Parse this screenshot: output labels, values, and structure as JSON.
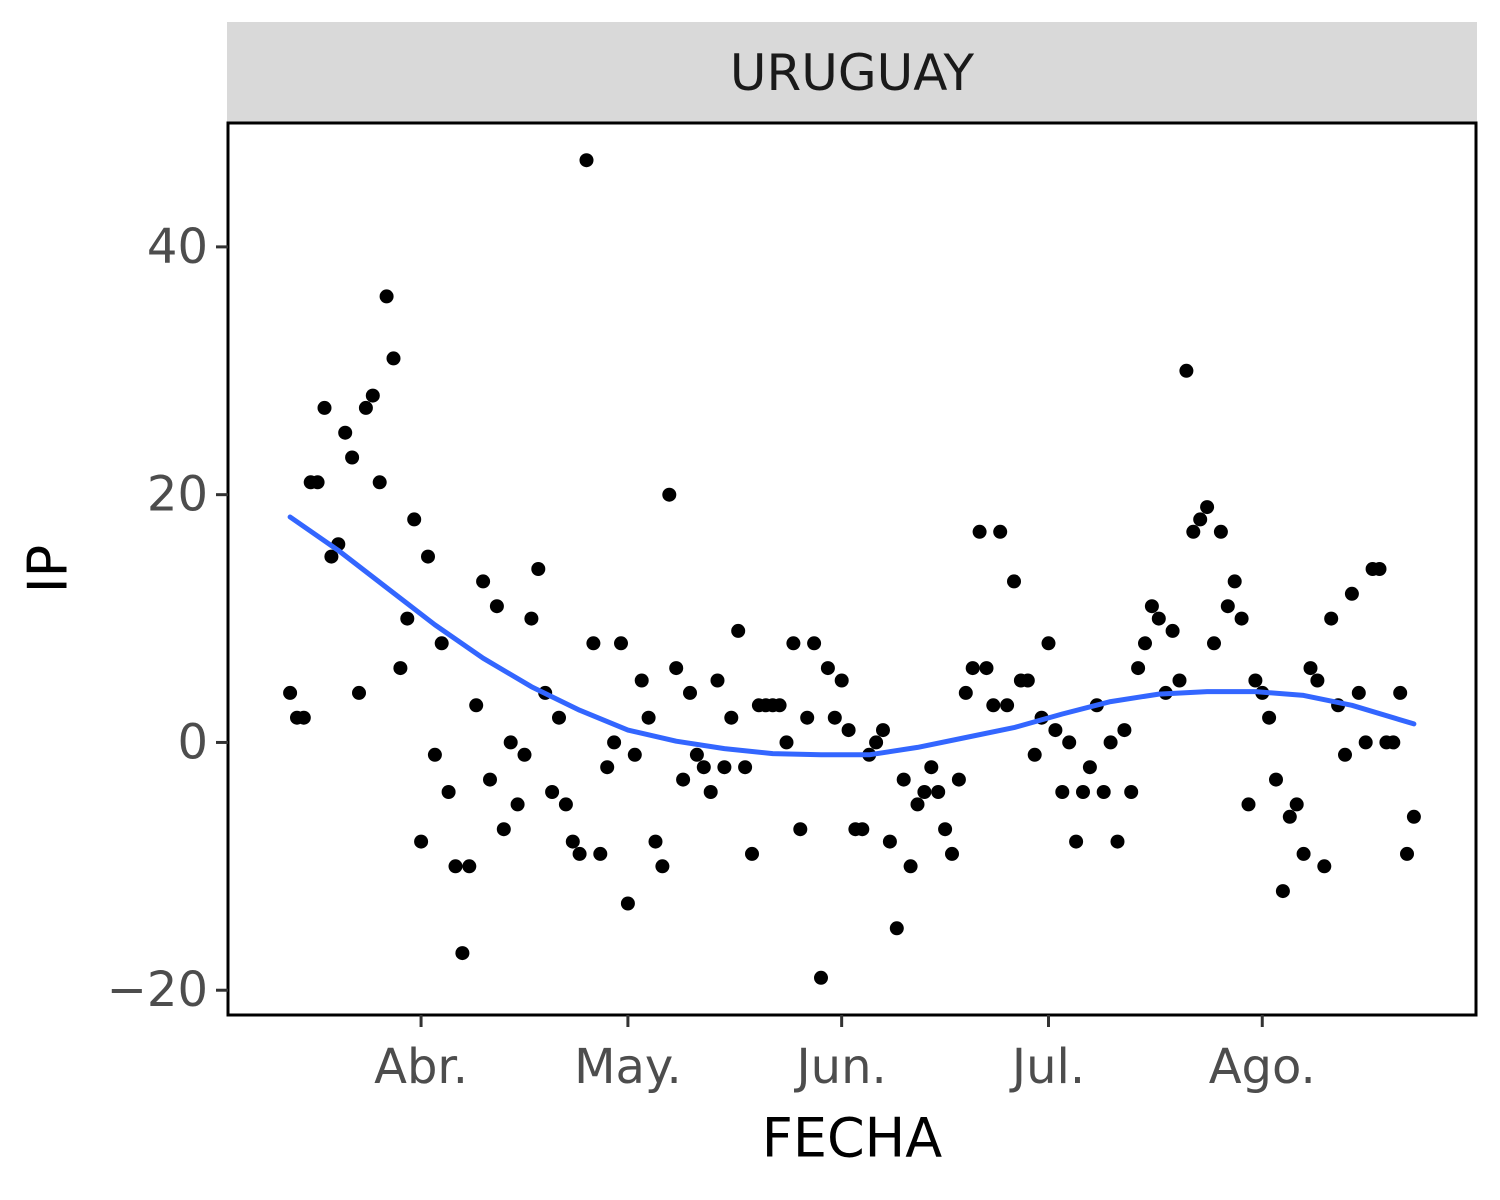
{
  "chart_data": {
    "type": "scatter",
    "facet_label": "URUGUAY",
    "xlabel": "FECHA",
    "ylabel": "IP",
    "x_ticks": [
      {
        "date": "2021-04-01",
        "label": "Abr."
      },
      {
        "date": "2021-05-01",
        "label": "May."
      },
      {
        "date": "2021-06-01",
        "label": "Jun."
      },
      {
        "date": "2021-07-01",
        "label": "Jul."
      },
      {
        "date": "2021-08-01",
        "label": "Ago."
      }
    ],
    "y_ticks": [
      -20,
      0,
      20,
      40
    ],
    "xlim": [
      "2021-03-04",
      "2021-09-01"
    ],
    "ylim": [
      -22,
      50
    ],
    "grid": false,
    "colors": {
      "points": "#000000",
      "trend": "#3366FF",
      "strip_bg": "#D9D9D9",
      "panel_border": "#000000"
    },
    "series": [
      {
        "type": "scatter",
        "points": [
          {
            "x": "2021-03-13",
            "y": 4
          },
          {
            "x": "2021-03-14",
            "y": 2
          },
          {
            "x": "2021-03-15",
            "y": 2
          },
          {
            "x": "2021-03-16",
            "y": 21
          },
          {
            "x": "2021-03-17",
            "y": 21
          },
          {
            "x": "2021-03-18",
            "y": 27
          },
          {
            "x": "2021-03-19",
            "y": 15
          },
          {
            "x": "2021-03-20",
            "y": 16
          },
          {
            "x": "2021-03-21",
            "y": 25
          },
          {
            "x": "2021-03-22",
            "y": 23
          },
          {
            "x": "2021-03-23",
            "y": 4
          },
          {
            "x": "2021-03-24",
            "y": 27
          },
          {
            "x": "2021-03-25",
            "y": 28
          },
          {
            "x": "2021-03-26",
            "y": 21
          },
          {
            "x": "2021-03-27",
            "y": 36
          },
          {
            "x": "2021-03-28",
            "y": 31
          },
          {
            "x": "2021-03-29",
            "y": 6
          },
          {
            "x": "2021-03-30",
            "y": 10
          },
          {
            "x": "2021-03-31",
            "y": 18
          },
          {
            "x": "2021-04-01",
            "y": -8
          },
          {
            "x": "2021-04-02",
            "y": 15
          },
          {
            "x": "2021-04-03",
            "y": -1
          },
          {
            "x": "2021-04-04",
            "y": 8
          },
          {
            "x": "2021-04-05",
            "y": -4
          },
          {
            "x": "2021-04-06",
            "y": -10
          },
          {
            "x": "2021-04-07",
            "y": -17
          },
          {
            "x": "2021-04-08",
            "y": -10
          },
          {
            "x": "2021-04-09",
            "y": 3
          },
          {
            "x": "2021-04-10",
            "y": 13
          },
          {
            "x": "2021-04-11",
            "y": -3
          },
          {
            "x": "2021-04-12",
            "y": 11
          },
          {
            "x": "2021-04-13",
            "y": -7
          },
          {
            "x": "2021-04-14",
            "y": 0
          },
          {
            "x": "2021-04-15",
            "y": -5
          },
          {
            "x": "2021-04-16",
            "y": -1
          },
          {
            "x": "2021-04-17",
            "y": 10
          },
          {
            "x": "2021-04-18",
            "y": 14
          },
          {
            "x": "2021-04-19",
            "y": 4
          },
          {
            "x": "2021-04-20",
            "y": -4
          },
          {
            "x": "2021-04-21",
            "y": 2
          },
          {
            "x": "2021-04-22",
            "y": -5
          },
          {
            "x": "2021-04-23",
            "y": -8
          },
          {
            "x": "2021-04-24",
            "y": -9
          },
          {
            "x": "2021-04-25",
            "y": 47
          },
          {
            "x": "2021-04-26",
            "y": 8
          },
          {
            "x": "2021-04-27",
            "y": -9
          },
          {
            "x": "2021-04-28",
            "y": -2
          },
          {
            "x": "2021-04-29",
            "y": 0
          },
          {
            "x": "2021-04-30",
            "y": 8
          },
          {
            "x": "2021-05-01",
            "y": -13
          },
          {
            "x": "2021-05-02",
            "y": -1
          },
          {
            "x": "2021-05-03",
            "y": 5
          },
          {
            "x": "2021-05-04",
            "y": 2
          },
          {
            "x": "2021-05-05",
            "y": -8
          },
          {
            "x": "2021-05-06",
            "y": -10
          },
          {
            "x": "2021-05-07",
            "y": 20
          },
          {
            "x": "2021-05-08",
            "y": 6
          },
          {
            "x": "2021-05-09",
            "y": -3
          },
          {
            "x": "2021-05-10",
            "y": 4
          },
          {
            "x": "2021-05-11",
            "y": -1
          },
          {
            "x": "2021-05-12",
            "y": -2
          },
          {
            "x": "2021-05-13",
            "y": -4
          },
          {
            "x": "2021-05-14",
            "y": 5
          },
          {
            "x": "2021-05-15",
            "y": -2
          },
          {
            "x": "2021-05-16",
            "y": 2
          },
          {
            "x": "2021-05-17",
            "y": 9
          },
          {
            "x": "2021-05-18",
            "y": -2
          },
          {
            "x": "2021-05-19",
            "y": -9
          },
          {
            "x": "2021-05-20",
            "y": 3
          },
          {
            "x": "2021-05-21",
            "y": 3
          },
          {
            "x": "2021-05-22",
            "y": 3
          },
          {
            "x": "2021-05-23",
            "y": 3
          },
          {
            "x": "2021-05-24",
            "y": 0
          },
          {
            "x": "2021-05-25",
            "y": 8
          },
          {
            "x": "2021-05-26",
            "y": -7
          },
          {
            "x": "2021-05-27",
            "y": 2
          },
          {
            "x": "2021-05-28",
            "y": 8
          },
          {
            "x": "2021-05-29",
            "y": -19
          },
          {
            "x": "2021-05-30",
            "y": 6
          },
          {
            "x": "2021-05-31",
            "y": 2
          },
          {
            "x": "2021-06-01",
            "y": 5
          },
          {
            "x": "2021-06-02",
            "y": 1
          },
          {
            "x": "2021-06-03",
            "y": -7
          },
          {
            "x": "2021-06-04",
            "y": -7
          },
          {
            "x": "2021-06-05",
            "y": -1
          },
          {
            "x": "2021-06-06",
            "y": 0
          },
          {
            "x": "2021-06-07",
            "y": 1
          },
          {
            "x": "2021-06-08",
            "y": -8
          },
          {
            "x": "2021-06-09",
            "y": -15
          },
          {
            "x": "2021-06-10",
            "y": -3
          },
          {
            "x": "2021-06-11",
            "y": -10
          },
          {
            "x": "2021-06-12",
            "y": -5
          },
          {
            "x": "2021-06-13",
            "y": -4
          },
          {
            "x": "2021-06-14",
            "y": -2
          },
          {
            "x": "2021-06-15",
            "y": -4
          },
          {
            "x": "2021-06-16",
            "y": -7
          },
          {
            "x": "2021-06-17",
            "y": -9
          },
          {
            "x": "2021-06-18",
            "y": -3
          },
          {
            "x": "2021-06-19",
            "y": 4
          },
          {
            "x": "2021-06-20",
            "y": 6
          },
          {
            "x": "2021-06-21",
            "y": 17
          },
          {
            "x": "2021-06-22",
            "y": 6
          },
          {
            "x": "2021-06-23",
            "y": 3
          },
          {
            "x": "2021-06-24",
            "y": 17
          },
          {
            "x": "2021-06-25",
            "y": 3
          },
          {
            "x": "2021-06-26",
            "y": 13
          },
          {
            "x": "2021-06-27",
            "y": 5
          },
          {
            "x": "2021-06-28",
            "y": 5
          },
          {
            "x": "2021-06-29",
            "y": -1
          },
          {
            "x": "2021-06-30",
            "y": 2
          },
          {
            "x": "2021-07-01",
            "y": 8
          },
          {
            "x": "2021-07-02",
            "y": 1
          },
          {
            "x": "2021-07-03",
            "y": -4
          },
          {
            "x": "2021-07-04",
            "y": 0
          },
          {
            "x": "2021-07-05",
            "y": -8
          },
          {
            "x": "2021-07-06",
            "y": -4
          },
          {
            "x": "2021-07-07",
            "y": -2
          },
          {
            "x": "2021-07-08",
            "y": 3
          },
          {
            "x": "2021-07-09",
            "y": -4
          },
          {
            "x": "2021-07-10",
            "y": 0
          },
          {
            "x": "2021-07-11",
            "y": -8
          },
          {
            "x": "2021-07-12",
            "y": 1
          },
          {
            "x": "2021-07-13",
            "y": -4
          },
          {
            "x": "2021-07-14",
            "y": 6
          },
          {
            "x": "2021-07-15",
            "y": 8
          },
          {
            "x": "2021-07-16",
            "y": 11
          },
          {
            "x": "2021-07-17",
            "y": 10
          },
          {
            "x": "2021-07-18",
            "y": 4
          },
          {
            "x": "2021-07-19",
            "y": 9
          },
          {
            "x": "2021-07-20",
            "y": 5
          },
          {
            "x": "2021-07-21",
            "y": 30
          },
          {
            "x": "2021-07-22",
            "y": 17
          },
          {
            "x": "2021-07-23",
            "y": 18
          },
          {
            "x": "2021-07-24",
            "y": 19
          },
          {
            "x": "2021-07-25",
            "y": 8
          },
          {
            "x": "2021-07-26",
            "y": 17
          },
          {
            "x": "2021-07-27",
            "y": 11
          },
          {
            "x": "2021-07-28",
            "y": 13
          },
          {
            "x": "2021-07-29",
            "y": 10
          },
          {
            "x": "2021-07-30",
            "y": -5
          },
          {
            "x": "2021-07-31",
            "y": 5
          },
          {
            "x": "2021-08-01",
            "y": 4
          },
          {
            "x": "2021-08-02",
            "y": 2
          },
          {
            "x": "2021-08-03",
            "y": -3
          },
          {
            "x": "2021-08-04",
            "y": -12
          },
          {
            "x": "2021-08-05",
            "y": -6
          },
          {
            "x": "2021-08-06",
            "y": -5
          },
          {
            "x": "2021-08-07",
            "y": -9
          },
          {
            "x": "2021-08-08",
            "y": 6
          },
          {
            "x": "2021-08-09",
            "y": 5
          },
          {
            "x": "2021-08-10",
            "y": -10
          },
          {
            "x": "2021-08-11",
            "y": 10
          },
          {
            "x": "2021-08-12",
            "y": 3
          },
          {
            "x": "2021-08-13",
            "y": -1
          },
          {
            "x": "2021-08-14",
            "y": 12
          },
          {
            "x": "2021-08-15",
            "y": 4
          },
          {
            "x": "2021-08-16",
            "y": 0
          },
          {
            "x": "2021-08-17",
            "y": 14
          },
          {
            "x": "2021-08-18",
            "y": 14
          },
          {
            "x": "2021-08-19",
            "y": 0
          },
          {
            "x": "2021-08-20",
            "y": 0
          },
          {
            "x": "2021-08-21",
            "y": 4
          },
          {
            "x": "2021-08-22",
            "y": -9
          },
          {
            "x": "2021-08-23",
            "y": -6
          }
        ]
      },
      {
        "type": "line",
        "points": [
          {
            "x": "2021-03-13",
            "y": 18.2
          },
          {
            "x": "2021-03-20",
            "y": 15.5
          },
          {
            "x": "2021-03-27",
            "y": 12.5
          },
          {
            "x": "2021-04-03",
            "y": 9.5
          },
          {
            "x": "2021-04-10",
            "y": 6.8
          },
          {
            "x": "2021-04-17",
            "y": 4.5
          },
          {
            "x": "2021-04-24",
            "y": 2.6
          },
          {
            "x": "2021-05-01",
            "y": 1.0
          },
          {
            "x": "2021-05-08",
            "y": 0.1
          },
          {
            "x": "2021-05-15",
            "y": -0.5
          },
          {
            "x": "2021-05-22",
            "y": -0.9
          },
          {
            "x": "2021-05-29",
            "y": -1.0
          },
          {
            "x": "2021-06-05",
            "y": -1.0
          },
          {
            "x": "2021-06-12",
            "y": -0.4
          },
          {
            "x": "2021-06-19",
            "y": 0.4
          },
          {
            "x": "2021-06-26",
            "y": 1.2
          },
          {
            "x": "2021-07-03",
            "y": 2.3
          },
          {
            "x": "2021-07-10",
            "y": 3.3
          },
          {
            "x": "2021-07-17",
            "y": 3.9
          },
          {
            "x": "2021-07-24",
            "y": 4.1
          },
          {
            "x": "2021-07-31",
            "y": 4.1
          },
          {
            "x": "2021-08-07",
            "y": 3.8
          },
          {
            "x": "2021-08-14",
            "y": 3.0
          },
          {
            "x": "2021-08-23",
            "y": 1.5
          }
        ]
      }
    ]
  }
}
